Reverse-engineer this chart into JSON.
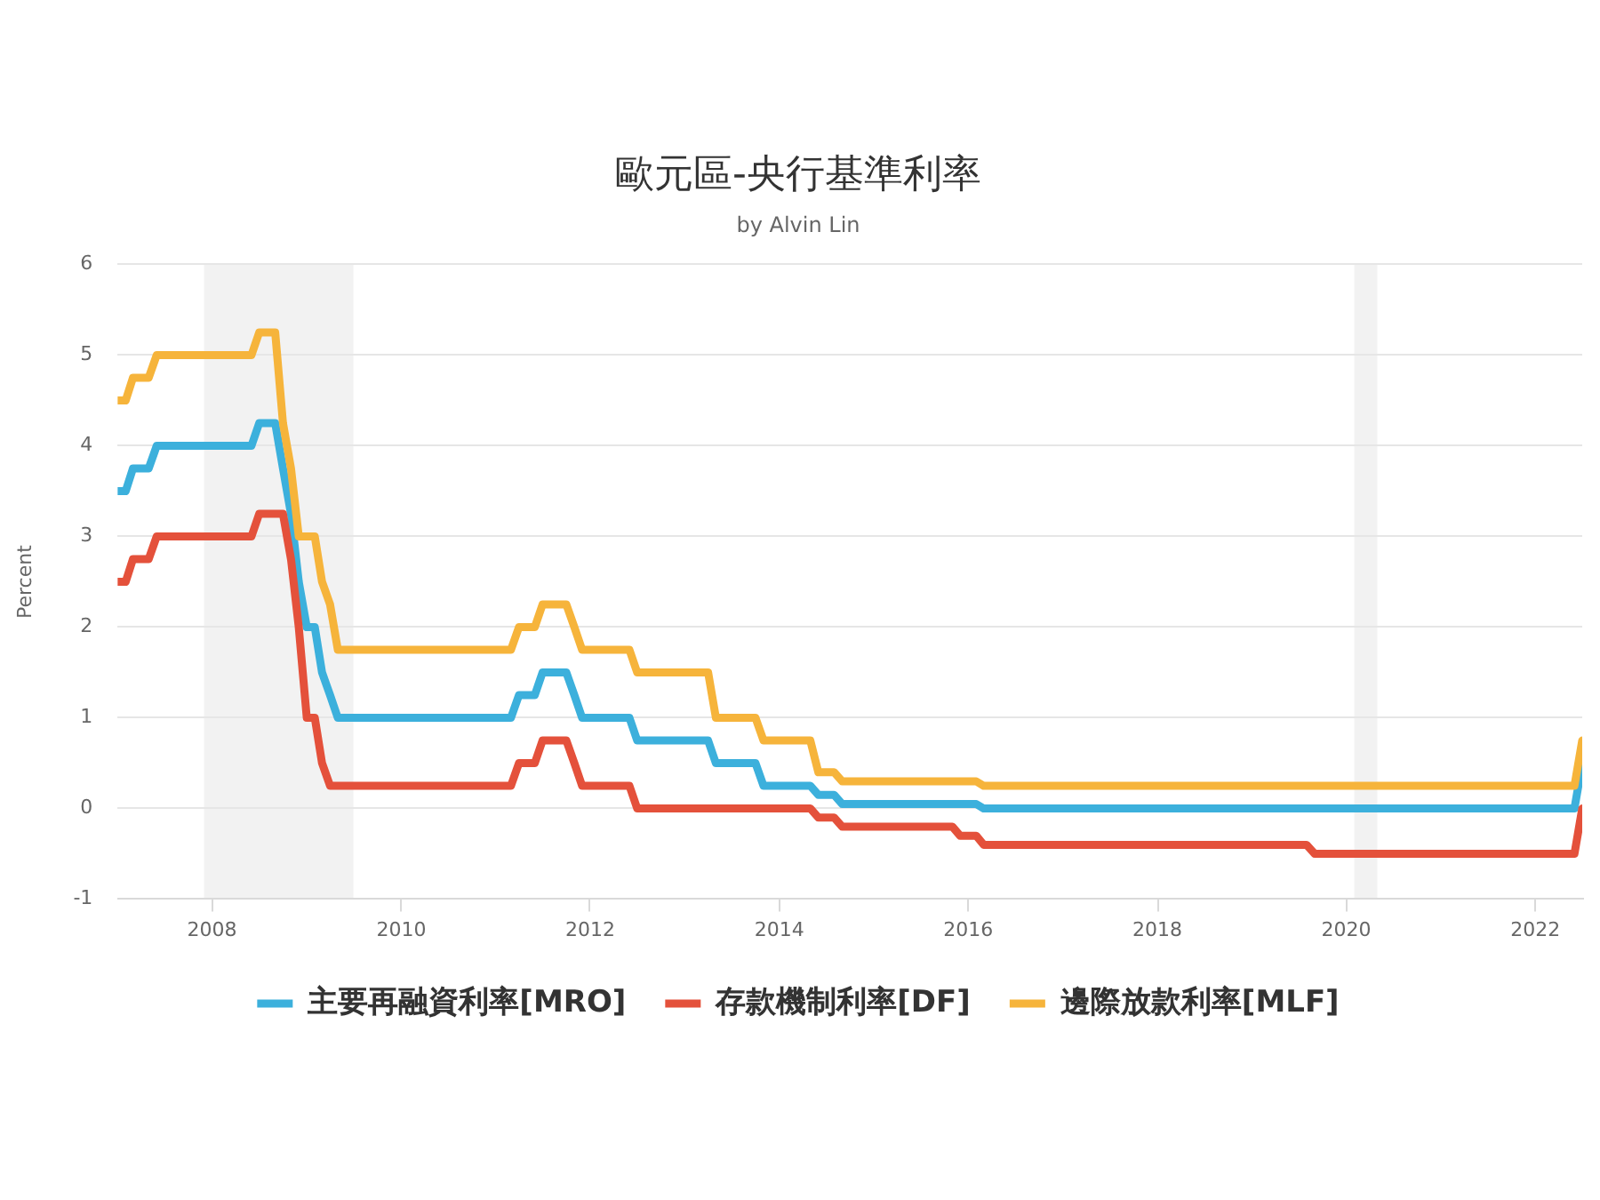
{
  "chart_data": {
    "type": "line",
    "title": "歐元區-央行基準利率",
    "subtitle": "by Alvin Lin",
    "ylabel": "Percent",
    "xlim": [
      "2007-01",
      "2022-07"
    ],
    "xticks": [
      "2008",
      "2010",
      "2012",
      "2014",
      "2016",
      "2018",
      "2020",
      "2022"
    ],
    "ylim": [
      -1,
      6
    ],
    "yticks": [
      -1,
      0,
      1,
      2,
      3,
      4,
      5,
      6
    ],
    "grid": "y",
    "legend": "bottom",
    "marker": "none",
    "bands": [
      {
        "axis": "x",
        "from": "2007-12",
        "to": "2009-06-30",
        "color": "#f2f2f2"
      },
      {
        "axis": "x",
        "from": "2020-02",
        "to": "2020-04-30",
        "color": "#f2f2f2"
      }
    ],
    "series": [
      {
        "name": "主要再融資利率[MRO]",
        "color": "#3cb0dc",
        "x": [
          "2007-01",
          "2007-02",
          "2007-03",
          "2007-05",
          "2007-06",
          "2008-06",
          "2008-07",
          "2008-09",
          "2008-10",
          "2008-11",
          "2008-12",
          "2009-01",
          "2009-02",
          "2009-03",
          "2009-04",
          "2009-05",
          "2011-03",
          "2011-04",
          "2011-06",
          "2011-07",
          "2011-10",
          "2011-11",
          "2011-12",
          "2012-06",
          "2012-07",
          "2013-04",
          "2013-05",
          "2013-10",
          "2013-11",
          "2014-05",
          "2014-06",
          "2014-08",
          "2014-09",
          "2016-02",
          "2016-03",
          "2022-06",
          "2022-07"
        ],
        "values": [
          3.5,
          3.5,
          3.75,
          3.75,
          4,
          4,
          4.25,
          4.25,
          3.75,
          3.25,
          2.5,
          2,
          2,
          1.5,
          1.25,
          1,
          1,
          1.25,
          1.25,
          1.5,
          1.5,
          1.25,
          1,
          1,
          0.75,
          0.75,
          0.5,
          0.5,
          0.25,
          0.25,
          0.15,
          0.15,
          0.05,
          0.05,
          0,
          0,
          0.5
        ]
      },
      {
        "name": "存款機制利率[DF]",
        "color": "#e4513b",
        "x": [
          "2007-01",
          "2007-02",
          "2007-03",
          "2007-05",
          "2007-06",
          "2008-06",
          "2008-07",
          "2008-10",
          "2008-11",
          "2008-12",
          "2009-01",
          "2009-02",
          "2009-03",
          "2009-04",
          "2011-03",
          "2011-04",
          "2011-06",
          "2011-07",
          "2011-10",
          "2011-11",
          "2011-12",
          "2012-06",
          "2012-07",
          "2014-05",
          "2014-06",
          "2014-08",
          "2014-09",
          "2015-11",
          "2015-12",
          "2016-02",
          "2016-03",
          "2019-08",
          "2019-09",
          "2022-06",
          "2022-07"
        ],
        "values": [
          2.5,
          2.5,
          2.75,
          2.75,
          3,
          3,
          3.25,
          3.25,
          2.75,
          2,
          1,
          1,
          0.5,
          0.25,
          0.25,
          0.5,
          0.5,
          0.75,
          0.75,
          0.5,
          0.25,
          0.25,
          0,
          0,
          -0.1,
          -0.1,
          -0.2,
          -0.2,
          -0.3,
          -0.3,
          -0.4,
          -0.4,
          -0.5,
          -0.5,
          0
        ]
      },
      {
        "name": "邊際放款利率[MLF]",
        "color": "#f6b43b",
        "x": [
          "2007-01",
          "2007-02",
          "2007-03",
          "2007-05",
          "2007-06",
          "2008-06",
          "2008-07",
          "2008-09",
          "2008-10",
          "2008-11",
          "2008-12",
          "2009-02",
          "2009-03",
          "2009-04",
          "2009-05",
          "2011-03",
          "2011-04",
          "2011-06",
          "2011-07",
          "2011-10",
          "2011-11",
          "2011-12",
          "2012-06",
          "2012-07",
          "2013-04",
          "2013-05",
          "2013-10",
          "2013-11",
          "2014-05",
          "2014-06",
          "2014-08",
          "2014-09",
          "2016-02",
          "2016-03",
          "2022-06",
          "2022-07"
        ],
        "values": [
          4.5,
          4.5,
          4.75,
          4.75,
          5,
          5,
          5.25,
          5.25,
          4.25,
          3.75,
          3,
          3,
          2.5,
          2.25,
          1.75,
          1.75,
          2,
          2,
          2.25,
          2.25,
          2,
          1.75,
          1.75,
          1.5,
          1.5,
          1,
          1,
          0.75,
          0.75,
          0.4,
          0.4,
          0.3,
          0.3,
          0.25,
          0.25,
          0.75
        ]
      }
    ]
  }
}
